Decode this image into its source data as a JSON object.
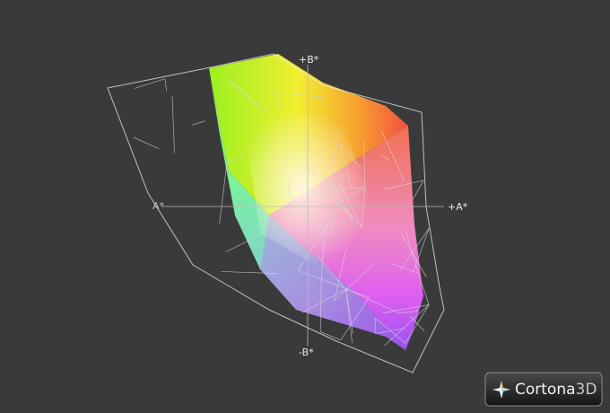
{
  "viewer": {
    "axes": {
      "plus_b": "+B*",
      "minus_b": "-B*",
      "plus_a": "+A*",
      "minus_a": "A*"
    },
    "logo": {
      "name": "Cortona",
      "suffix": "3D"
    }
  }
}
